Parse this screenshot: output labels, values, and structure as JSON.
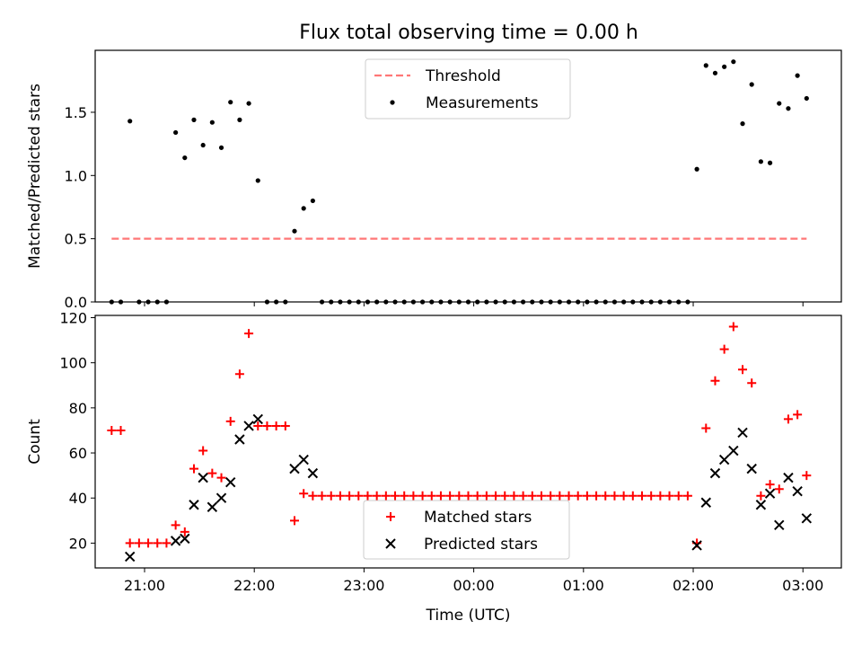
{
  "chart_data": [
    {
      "type": "scatter",
      "title": "Flux total observing time = 0.00 h",
      "xlabel": "",
      "ylabel": "Matched/Predicted stars",
      "xlim": [
        "20:33",
        "03:21"
      ],
      "ylim": [
        0,
        1.99
      ],
      "xticks": [
        "21:00",
        "22:00",
        "23:00",
        "00:00",
        "01:00",
        "02:00",
        "03:00"
      ],
      "yticks": [
        "0.0",
        "0.5",
        "1.0",
        "1.5"
      ],
      "legend_position": "upper center",
      "threshold": {
        "name": "Threshold",
        "value": 0.5,
        "x_start": "20:42",
        "x_end": "03:02",
        "color": "#ff7777"
      },
      "series": [
        {
          "name": "Measurements",
          "color": "#000000",
          "points": [
            [
              "20:42",
              0.0
            ],
            [
              "20:47",
              0.0
            ],
            [
              "20:52",
              1.43
            ],
            [
              "20:57",
              0.0
            ],
            [
              "21:02",
              0.0
            ],
            [
              "21:07",
              0.0
            ],
            [
              "21:12",
              0.0
            ],
            [
              "21:17",
              1.34
            ],
            [
              "21:22",
              1.14
            ],
            [
              "21:27",
              1.44
            ],
            [
              "21:32",
              1.24
            ],
            [
              "21:37",
              1.42
            ],
            [
              "21:42",
              1.22
            ],
            [
              "21:47",
              1.58
            ],
            [
              "21:52",
              1.44
            ],
            [
              "21:57",
              1.57
            ],
            [
              "22:02",
              0.96
            ],
            [
              "22:07",
              0.0
            ],
            [
              "22:12",
              0.0
            ],
            [
              "22:17",
              0.0
            ],
            [
              "22:22",
              0.56
            ],
            [
              "22:27",
              0.74
            ],
            [
              "22:32",
              0.8
            ],
            [
              "22:37",
              0.0
            ],
            [
              "22:42",
              0.0
            ],
            [
              "22:47",
              0.0
            ],
            [
              "22:52",
              0.0
            ],
            [
              "22:57",
              0.0
            ],
            [
              "23:02",
              0.0
            ],
            [
              "23:07",
              0.0
            ],
            [
              "23:12",
              0.0
            ],
            [
              "23:17",
              0.0
            ],
            [
              "23:22",
              0.0
            ],
            [
              "23:27",
              0.0
            ],
            [
              "23:32",
              0.0
            ],
            [
              "23:37",
              0.0
            ],
            [
              "23:42",
              0.0
            ],
            [
              "23:47",
              0.0
            ],
            [
              "23:52",
              0.0
            ],
            [
              "23:57",
              0.0
            ],
            [
              "00:02",
              0.0
            ],
            [
              "00:07",
              0.0
            ],
            [
              "00:12",
              0.0
            ],
            [
              "00:17",
              0.0
            ],
            [
              "00:22",
              0.0
            ],
            [
              "00:27",
              0.0
            ],
            [
              "00:32",
              0.0
            ],
            [
              "00:37",
              0.0
            ],
            [
              "00:42",
              0.0
            ],
            [
              "00:47",
              0.0
            ],
            [
              "00:52",
              0.0
            ],
            [
              "00:57",
              0.0
            ],
            [
              "01:02",
              0.0
            ],
            [
              "01:07",
              0.0
            ],
            [
              "01:12",
              0.0
            ],
            [
              "01:17",
              0.0
            ],
            [
              "01:22",
              0.0
            ],
            [
              "01:27",
              0.0
            ],
            [
              "01:32",
              0.0
            ],
            [
              "01:37",
              0.0
            ],
            [
              "01:42",
              0.0
            ],
            [
              "01:47",
              0.0
            ],
            [
              "01:52",
              0.0
            ],
            [
              "01:57",
              0.0
            ],
            [
              "02:02",
              1.05
            ],
            [
              "02:07",
              1.87
            ],
            [
              "02:12",
              1.81
            ],
            [
              "02:17",
              1.86
            ],
            [
              "02:22",
              1.9
            ],
            [
              "02:27",
              1.41
            ],
            [
              "02:32",
              1.72
            ],
            [
              "02:37",
              1.11
            ],
            [
              "02:42",
              1.1
            ],
            [
              "02:47",
              1.57
            ],
            [
              "02:52",
              1.53
            ],
            [
              "02:57",
              1.79
            ],
            [
              "03:02",
              1.61
            ]
          ]
        }
      ]
    },
    {
      "type": "scatter",
      "title": "",
      "xlabel": "Time (UTC)",
      "ylabel": "Count",
      "xlim": [
        "20:33",
        "03:21"
      ],
      "ylim": [
        9,
        121
      ],
      "xticks": [
        "21:00",
        "22:00",
        "23:00",
        "00:00",
        "01:00",
        "02:00",
        "03:00"
      ],
      "yticks": [
        "20",
        "40",
        "60",
        "80",
        "100",
        "120"
      ],
      "legend_position": "lower center",
      "series": [
        {
          "name": "Matched stars",
          "marker": "+",
          "color": "#ff0000",
          "points": [
            [
              "20:42",
              70
            ],
            [
              "20:47",
              70
            ],
            [
              "20:52",
              20
            ],
            [
              "20:57",
              20
            ],
            [
              "21:02",
              20
            ],
            [
              "21:07",
              20
            ],
            [
              "21:12",
              20
            ],
            [
              "21:17",
              28
            ],
            [
              "21:22",
              25
            ],
            [
              "21:27",
              53
            ],
            [
              "21:32",
              61
            ],
            [
              "21:37",
              51
            ],
            [
              "21:42",
              49
            ],
            [
              "21:47",
              74
            ],
            [
              "21:52",
              95
            ],
            [
              "21:57",
              113
            ],
            [
              "22:02",
              72
            ],
            [
              "22:07",
              72
            ],
            [
              "22:12",
              72
            ],
            [
              "22:17",
              72
            ],
            [
              "22:22",
              30
            ],
            [
              "22:27",
              42
            ],
            [
              "22:32",
              41
            ],
            [
              "22:37",
              41
            ],
            [
              "22:42",
              41
            ],
            [
              "22:47",
              41
            ],
            [
              "22:52",
              41
            ],
            [
              "22:57",
              41
            ],
            [
              "23:02",
              41
            ],
            [
              "23:07",
              41
            ],
            [
              "23:12",
              41
            ],
            [
              "23:17",
              41
            ],
            [
              "23:22",
              41
            ],
            [
              "23:27",
              41
            ],
            [
              "23:32",
              41
            ],
            [
              "23:37",
              41
            ],
            [
              "23:42",
              41
            ],
            [
              "23:47",
              41
            ],
            [
              "23:52",
              41
            ],
            [
              "23:57",
              41
            ],
            [
              "00:02",
              41
            ],
            [
              "00:07",
              41
            ],
            [
              "00:12",
              41
            ],
            [
              "00:17",
              41
            ],
            [
              "00:22",
              41
            ],
            [
              "00:27",
              41
            ],
            [
              "00:32",
              41
            ],
            [
              "00:37",
              41
            ],
            [
              "00:42",
              41
            ],
            [
              "00:47",
              41
            ],
            [
              "00:52",
              41
            ],
            [
              "00:57",
              41
            ],
            [
              "01:02",
              41
            ],
            [
              "01:07",
              41
            ],
            [
              "01:12",
              41
            ],
            [
              "01:17",
              41
            ],
            [
              "01:22",
              41
            ],
            [
              "01:27",
              41
            ],
            [
              "01:32",
              41
            ],
            [
              "01:37",
              41
            ],
            [
              "01:42",
              41
            ],
            [
              "01:47",
              41
            ],
            [
              "01:52",
              41
            ],
            [
              "01:57",
              41
            ],
            [
              "02:02",
              20
            ],
            [
              "02:07",
              71
            ],
            [
              "02:12",
              92
            ],
            [
              "02:17",
              106
            ],
            [
              "02:22",
              116
            ],
            [
              "02:27",
              97
            ],
            [
              "02:32",
              91
            ],
            [
              "02:37",
              41
            ],
            [
              "02:42",
              46
            ],
            [
              "02:47",
              44
            ],
            [
              "02:52",
              75
            ],
            [
              "02:57",
              77
            ],
            [
              "03:02",
              50
            ]
          ]
        },
        {
          "name": "Predicted stars",
          "marker": "x",
          "color": "#000000",
          "points": [
            [
              "20:52",
              14
            ],
            [
              "21:17",
              21
            ],
            [
              "21:22",
              22
            ],
            [
              "21:27",
              37
            ],
            [
              "21:32",
              49
            ],
            [
              "21:37",
              36
            ],
            [
              "21:42",
              40
            ],
            [
              "21:47",
              47
            ],
            [
              "21:52",
              66
            ],
            [
              "21:57",
              72
            ],
            [
              "22:02",
              75
            ],
            [
              "22:22",
              53
            ],
            [
              "22:27",
              57
            ],
            [
              "22:32",
              51
            ],
            [
              "02:02",
              19
            ],
            [
              "02:07",
              38
            ],
            [
              "02:12",
              51
            ],
            [
              "02:17",
              57
            ],
            [
              "02:22",
              61
            ],
            [
              "02:27",
              69
            ],
            [
              "02:32",
              53
            ],
            [
              "02:37",
              37
            ],
            [
              "02:42",
              42
            ],
            [
              "02:47",
              28
            ],
            [
              "02:52",
              49
            ],
            [
              "02:57",
              43
            ],
            [
              "03:02",
              31
            ]
          ]
        }
      ]
    }
  ]
}
